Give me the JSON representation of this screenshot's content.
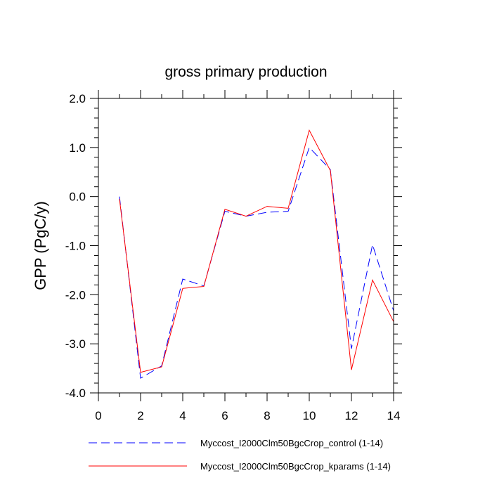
{
  "chart_data": {
    "type": "line",
    "title": "gross primary production",
    "xlabel": "",
    "ylabel": "GPP  (PgC/y)",
    "xlim": [
      0,
      14
    ],
    "ylim": [
      -4.0,
      2.0
    ],
    "x_ticks": [
      0,
      2,
      4,
      6,
      8,
      10,
      12,
      14
    ],
    "x_tick_labels": [
      "0",
      "2",
      "4",
      "6",
      "8",
      "10",
      "12",
      "14"
    ],
    "y_ticks": [
      -4.0,
      -3.0,
      -2.0,
      -1.0,
      0.0,
      1.0,
      2.0
    ],
    "y_tick_labels": [
      "-4.0",
      "-3.0",
      "-2.0",
      "-1.0",
      "0.0",
      "1.0",
      "2.0"
    ],
    "grid": false,
    "legend_position": "bottom",
    "series": [
      {
        "name": "Myccost_I2000Clm50BgcCrop_control (1-14)",
        "color": "#0000ff",
        "style": "dashed",
        "x": [
          1,
          2,
          3,
          4,
          5,
          6,
          7,
          8,
          9,
          10,
          11,
          12,
          13,
          14
        ],
        "y": [
          0.0,
          -3.7,
          -3.45,
          -1.68,
          -1.82,
          -0.3,
          -0.4,
          -0.32,
          -0.3,
          1.0,
          0.55,
          -3.1,
          -0.98,
          -2.33
        ]
      },
      {
        "name": "Myccost_I2000Clm50BgcCrop_kparams (1-14)",
        "color": "#ff0000",
        "style": "solid",
        "x": [
          1,
          2,
          3,
          4,
          5,
          6,
          7,
          8,
          9,
          10,
          11,
          12,
          13,
          14
        ],
        "y": [
          -0.05,
          -3.58,
          -3.47,
          -1.87,
          -1.83,
          -0.26,
          -0.4,
          -0.2,
          -0.24,
          1.35,
          0.53,
          -3.53,
          -1.7,
          -2.55
        ]
      }
    ]
  }
}
